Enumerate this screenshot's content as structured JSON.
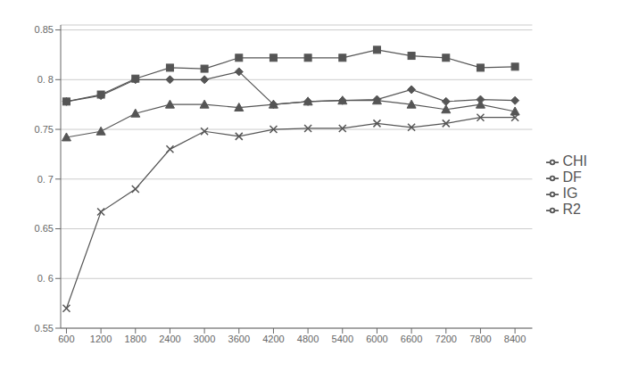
{
  "chart_data": {
    "type": "line",
    "x": [
      600,
      1200,
      1800,
      2400,
      3000,
      3600,
      4200,
      4800,
      5400,
      6000,
      6600,
      7200,
      7800,
      8400
    ],
    "series": [
      {
        "name": "CHI",
        "color": "#555555",
        "marker": "diamond",
        "values": [
          0.778,
          0.784,
          0.8,
          0.8,
          0.8,
          0.808,
          0.775,
          0.778,
          0.779,
          0.78,
          0.79,
          0.778,
          0.78,
          0.779
        ]
      },
      {
        "name": "R2",
        "color": "#555555",
        "marker": "square",
        "values": [
          0.778,
          0.785,
          0.801,
          0.812,
          0.811,
          0.822,
          0.822,
          0.822,
          0.822,
          0.83,
          0.824,
          0.822,
          0.812,
          0.813
        ]
      },
      {
        "name": "IG",
        "color": "#555555",
        "marker": "triangle",
        "values": [
          0.742,
          0.748,
          0.766,
          0.775,
          0.775,
          0.772,
          0.775,
          0.778,
          0.779,
          0.779,
          0.775,
          0.77,
          0.775,
          0.768
        ]
      },
      {
        "name": "DF",
        "color": "#555555",
        "marker": "x",
        "values": [
          0.57,
          0.667,
          0.69,
          0.73,
          0.748,
          0.743,
          0.75,
          0.751,
          0.751,
          0.756,
          0.752,
          0.756,
          0.762,
          0.762
        ]
      }
    ],
    "xlim": [
      500,
      8700
    ],
    "xticks": [
      600,
      1200,
      1800,
      2400,
      3000,
      3600,
      4200,
      4800,
      5400,
      6000,
      6600,
      7200,
      7800,
      8400
    ],
    "ylim": [
      0.55,
      0.855
    ],
    "yticks": [
      0.55,
      {
        "value": 0.6,
        "label": "0. 6"
      },
      0.65,
      {
        "value": 0.7,
        "label": "0. 7"
      },
      0.75,
      {
        "value": 0.8,
        "label": "0. 8"
      },
      0.85
    ],
    "grid": true,
    "legend": "right"
  }
}
